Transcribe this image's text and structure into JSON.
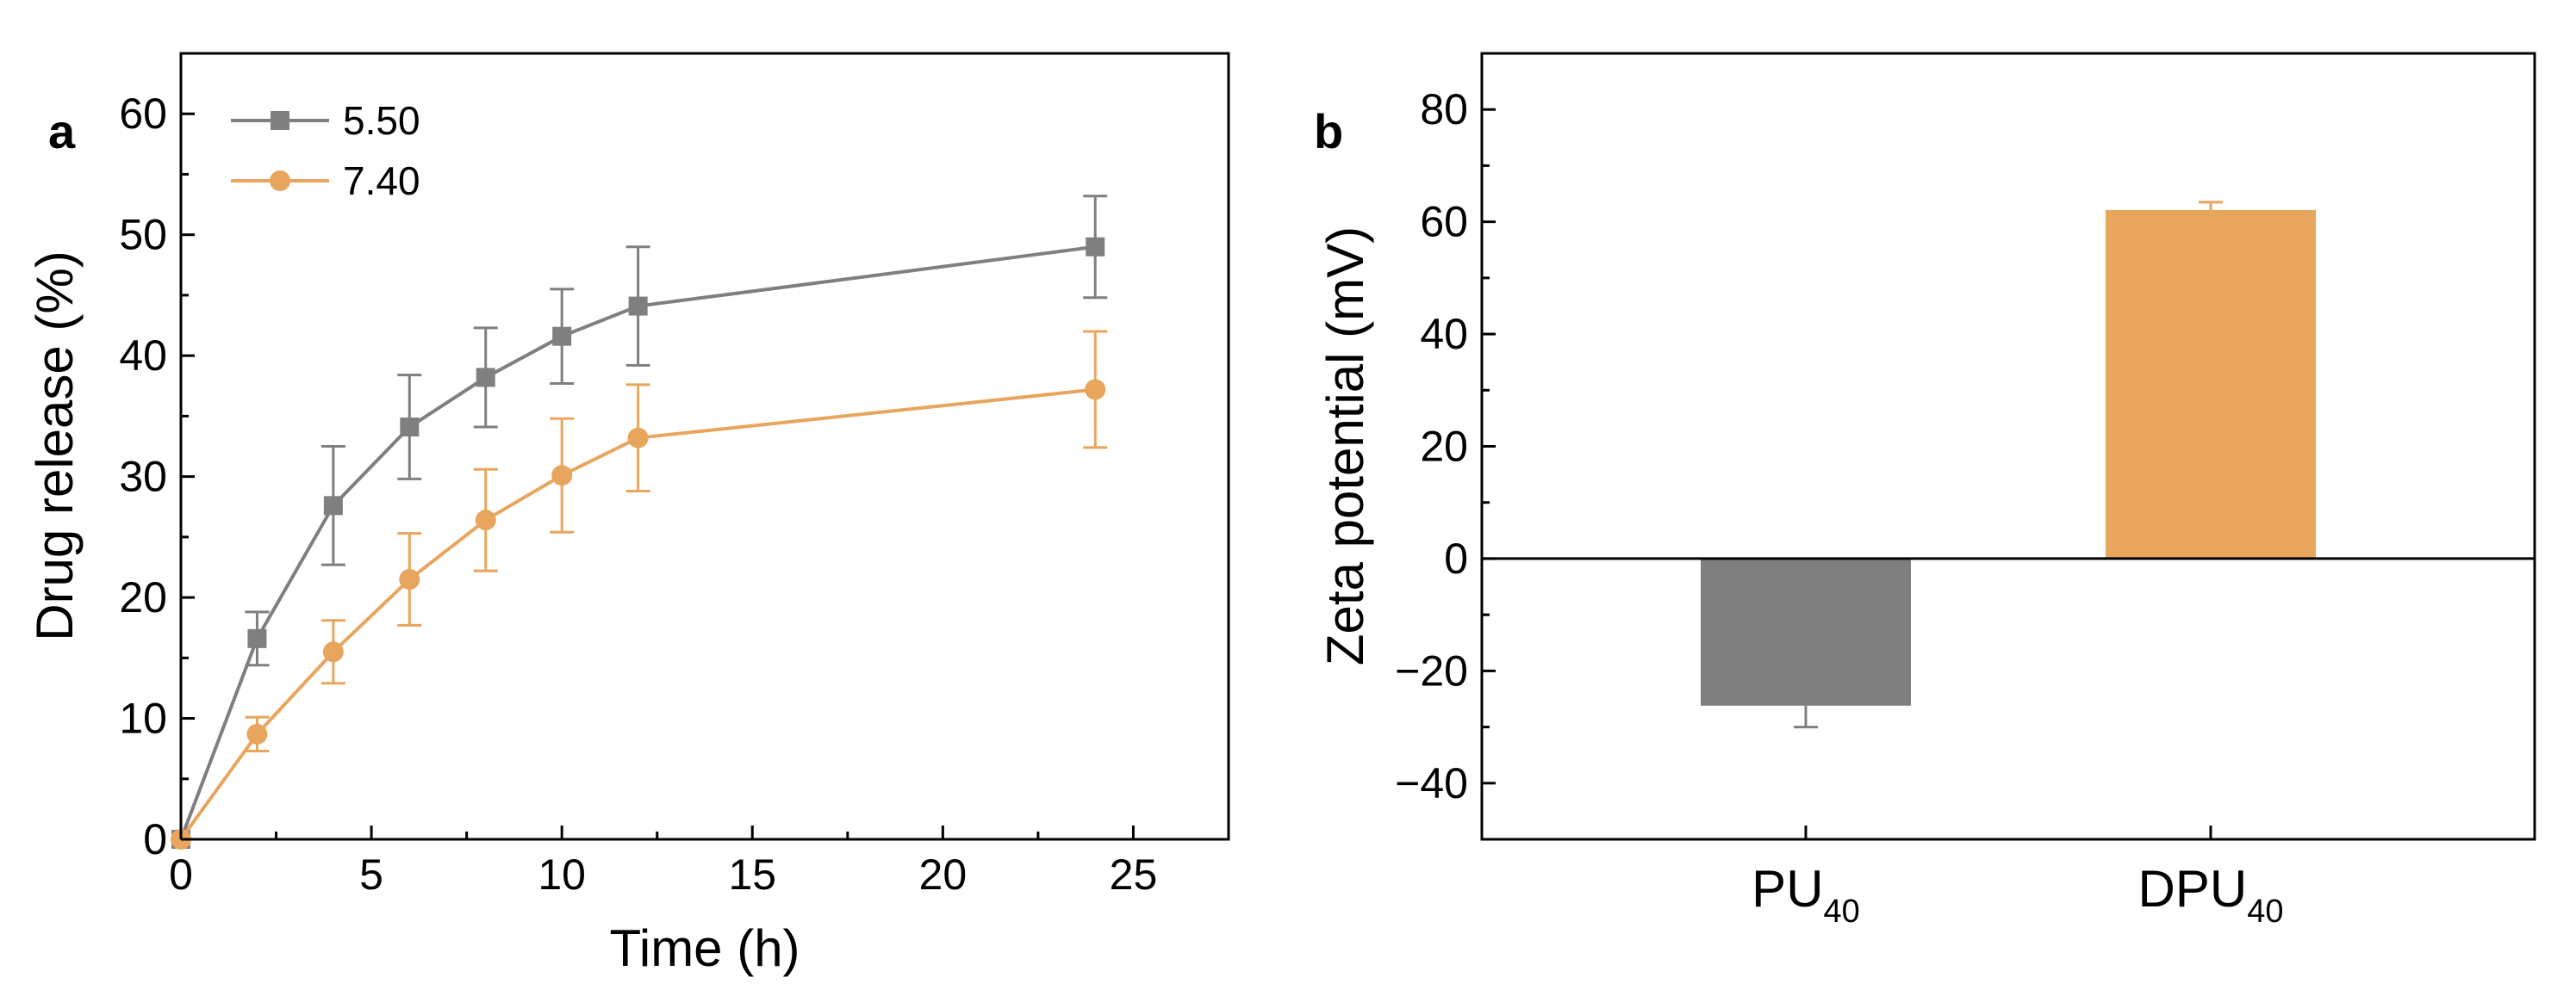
{
  "colors": {
    "gray": "#7f7f7f",
    "orange": "#e8a55d",
    "axis": "#000000"
  },
  "chart_data": [
    {
      "panel": "a",
      "type": "line",
      "title": "",
      "xlabel": "Time (h)",
      "ylabel": "Drug release (%)",
      "xlim": [
        0,
        27.5
      ],
      "ylim": [
        0,
        65
      ],
      "xticks": [
        0,
        5,
        10,
        15,
        20,
        25
      ],
      "yticks": [
        0,
        10,
        20,
        30,
        40,
        50,
        60
      ],
      "legend_position": "top-left",
      "series": [
        {
          "name": "5.50",
          "marker": "square",
          "color": "#7f7f7f",
          "x": [
            0,
            2,
            4,
            6,
            8,
            10,
            12,
            24
          ],
          "y": [
            0,
            16.6,
            27.6,
            34.1,
            38.2,
            41.6,
            44.1,
            49.0
          ],
          "err": [
            0,
            2.2,
            4.9,
            4.3,
            4.1,
            3.9,
            4.9,
            4.2
          ]
        },
        {
          "name": "7.40",
          "marker": "circle",
          "color": "#e8a55d",
          "x": [
            0,
            2,
            4,
            6,
            8,
            10,
            12,
            24
          ],
          "y": [
            0,
            8.7,
            15.5,
            21.5,
            26.4,
            30.1,
            33.2,
            37.2
          ],
          "err": [
            0,
            1.4,
            2.6,
            3.8,
            4.2,
            4.7,
            4.4,
            4.8
          ]
        }
      ]
    },
    {
      "panel": "b",
      "type": "bar",
      "title": "",
      "xlabel": "",
      "ylabel": "Zeta potential (mV)",
      "ylim": [
        -50,
        90
      ],
      "yticks": [
        -40,
        -20,
        0,
        20,
        40,
        60,
        80
      ],
      "categories": [
        {
          "main": "PU",
          "sub": "40"
        },
        {
          "main": "DPU",
          "sub": "40"
        }
      ],
      "values": [
        -26.2,
        62.1
      ],
      "errors": [
        3.8,
        1.4
      ],
      "bar_colors": [
        "#7f7f7f",
        "#e8a55d"
      ]
    }
  ]
}
